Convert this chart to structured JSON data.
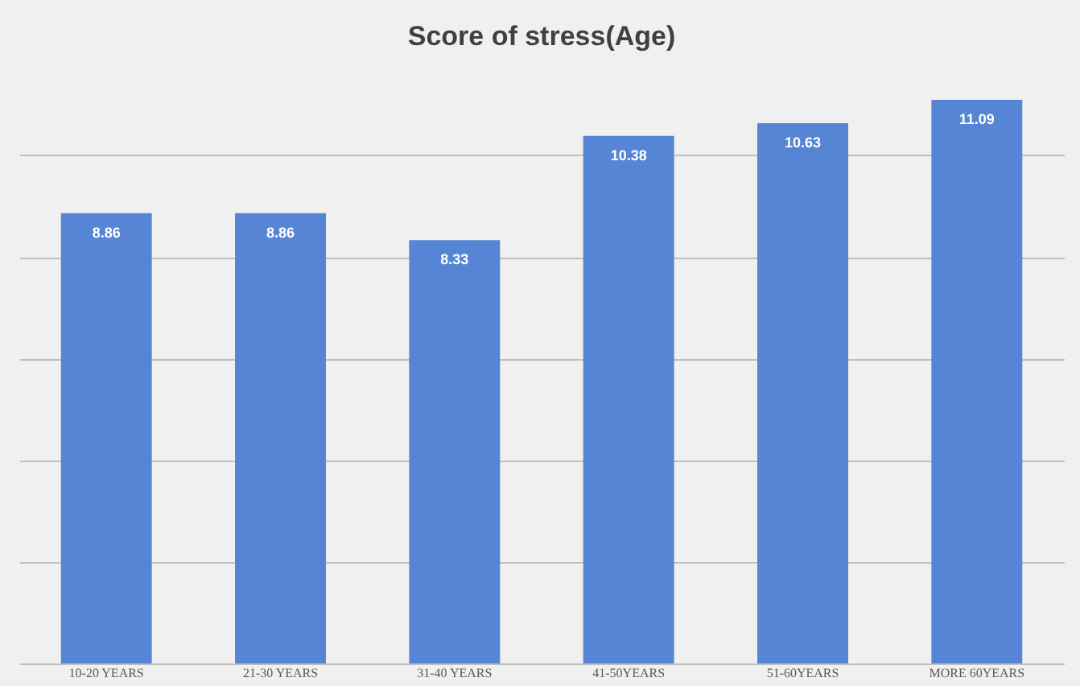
{
  "chart_data": {
    "type": "bar",
    "title": "Score of stress(Age)",
    "categories": [
      "10-20 YEARS",
      "21-30 YEARS",
      "31-40 YEARS",
      "41-50YEARS",
      "51-60YEARS",
      "MORE 60YEARS"
    ],
    "values": [
      8.86,
      8.86,
      8.33,
      10.38,
      10.63,
      11.09
    ],
    "color": "#5585d4",
    "grid": "y",
    "tick_labels": "x",
    "data_labels": true
  }
}
